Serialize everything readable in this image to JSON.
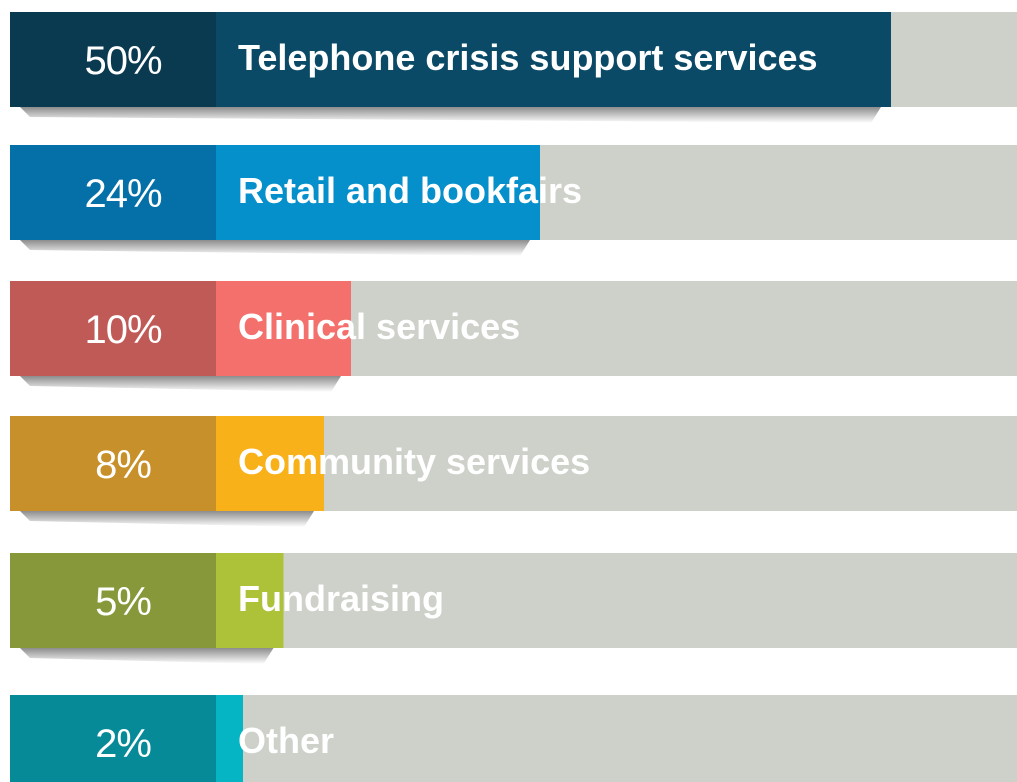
{
  "chart_data": {
    "type": "bar",
    "categories": [
      "Telephone crisis support services",
      "Retail and bookfairs",
      "Clinical services",
      "Community services",
      "Fundraising",
      "Other"
    ],
    "values": [
      50,
      24,
      10,
      8,
      5,
      2
    ],
    "value_labels": [
      "50%",
      "24%",
      "10%",
      "8%",
      "5%",
      "2%"
    ],
    "colors": [
      "#0b4a66",
      "#0590cc",
      "#f4706c",
      "#f9b11a",
      "#adc238",
      "#05b5c4"
    ],
    "tag_colors": [
      "#0a3a50",
      "#0570a8",
      "#c05a57",
      "#c8902a",
      "#86983a",
      "#068a98"
    ],
    "track_color": "#cdd1c9"
  }
}
